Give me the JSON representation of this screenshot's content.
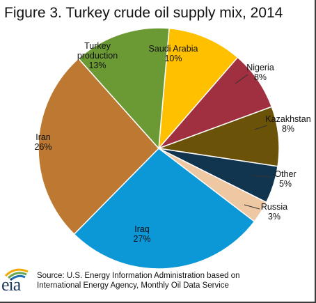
{
  "title": "Figure 3. Turkey crude oil supply mix, 2014",
  "source": {
    "line1": "Source: U.S. Energy Information Administration based on",
    "line2": "International Energy Agency, Monthly Oil Data Service"
  },
  "logo_text": "eia",
  "chart_data": {
    "type": "pie",
    "title": "Figure 3. Turkey crude oil supply mix, 2014",
    "start_angle_deg": 5,
    "slices": [
      {
        "label": "Saudi Arabia",
        "value": 10,
        "value_label": "10%",
        "color": "#ffc000"
      },
      {
        "label": "Nigeria",
        "value": 8,
        "value_label": "8%",
        "color": "#a03040"
      },
      {
        "label": "Kazakhstan",
        "value": 8,
        "value_label": "8%",
        "color": "#6b5209"
      },
      {
        "label": "Other",
        "value": 5,
        "value_label": "5%",
        "color": "#12354f"
      },
      {
        "label": "Russia",
        "value": 3,
        "value_label": "3%",
        "color": "#eec8a3"
      },
      {
        "label": "Iraq",
        "value": 27,
        "value_label": "27%",
        "color": "#0c97d6"
      },
      {
        "label": "Iran",
        "value": 26,
        "value_label": "26%",
        "color": "#bd7831"
      },
      {
        "label": "Turkey\nproduction",
        "value": 13,
        "value_label": "13%",
        "color": "#6b9a35"
      }
    ]
  }
}
